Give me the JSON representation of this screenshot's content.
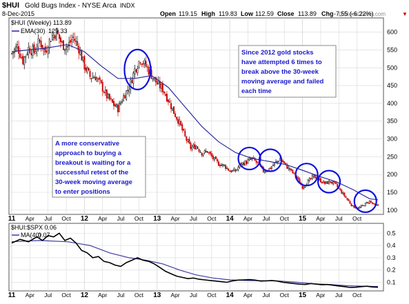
{
  "header": {
    "symbol": "$HUI",
    "name": "Gold Bugs Index - NYSE Arca",
    "exchange": "INDX",
    "date": "8-Dec-2015",
    "open_label": "Open",
    "open": "119.15",
    "high_label": "High",
    "high": "119.83",
    "low_label": "Low",
    "low": "112.59",
    "close_label": "Close",
    "close": "113.89",
    "chg_label": "Chg",
    "chg": "-7.55 (-6.22%)",
    "chg_arrow": "▼",
    "watermark": "@StockCharts.com"
  },
  "colors": {
    "up": "#000000",
    "down": "#cc0000",
    "ema": "#2a2a9a",
    "circle": "#1111dd",
    "annotation_text": "#1a1acc",
    "ratio": "#000000",
    "ma": "#3b3b9f",
    "grid": "#d8d8d8"
  },
  "chart_data": [
    {
      "type": "candlestick",
      "title": "$HUI (Weekly) 113.89",
      "series": [
        {
          "name": "$HUI (Weekly)",
          "value_label": "113.89",
          "close": [
            [
              0,
              540
            ],
            [
              4,
              560
            ],
            [
              8,
              520
            ],
            [
              12,
              555
            ],
            [
              16,
              545
            ],
            [
              20,
              575
            ],
            [
              24,
              545
            ],
            [
              28,
              585
            ],
            [
              32,
              600
            ],
            [
              36,
              565
            ],
            [
              40,
              560
            ],
            [
              44,
              585
            ],
            [
              48,
              555
            ],
            [
              52,
              505
            ],
            [
              56,
              475
            ],
            [
              60,
              475
            ],
            [
              64,
              450
            ],
            [
              68,
              420
            ],
            [
              72,
              400
            ],
            [
              76,
              385
            ],
            [
              80,
              420
            ],
            [
              84,
              445
            ],
            [
              88,
              495
            ],
            [
              92,
              525
            ],
            [
              96,
              505
            ],
            [
              100,
              480
            ],
            [
              104,
              455
            ],
            [
              108,
              440
            ],
            [
              112,
              410
            ],
            [
              116,
              375
            ],
            [
              120,
              345
            ],
            [
              124,
              305
            ],
            [
              128,
              275
            ],
            [
              132,
              280
            ],
            [
              136,
              260
            ],
            [
              140,
              265
            ],
            [
              144,
              245
            ],
            [
              148,
              230
            ],
            [
              152,
              225
            ],
            [
              156,
              210
            ],
            [
              160,
              210
            ],
            [
              164,
              230
            ],
            [
              168,
              235
            ],
            [
              172,
              245
            ],
            [
              176,
              230
            ],
            [
              180,
              210
            ],
            [
              184,
              215
            ],
            [
              188,
              230
            ],
            [
              192,
              245
            ],
            [
              196,
              225
            ],
            [
              200,
              210
            ],
            [
              204,
              190
            ],
            [
              208,
              165
            ],
            [
              212,
              180
            ],
            [
              216,
              195
            ],
            [
              220,
              185
            ],
            [
              224,
              175
            ],
            [
              228,
              180
            ],
            [
              232,
              170
            ],
            [
              236,
              150
            ],
            [
              240,
              130
            ],
            [
              244,
              110
            ],
            [
              248,
              105
            ],
            [
              252,
              115
            ],
            [
              256,
              125
            ],
            [
              260,
              112
            ],
            [
              262,
              114
            ]
          ]
        },
        {
          "name": "EMA(30)",
          "value_label": "129.33",
          "values": [
            [
              0,
              545
            ],
            [
              24,
              555
            ],
            [
              40,
              565
            ],
            [
              52,
              545
            ],
            [
              64,
              505
            ],
            [
              76,
              470
            ],
            [
              88,
              470
            ],
            [
              100,
              478
            ],
            [
              112,
              445
            ],
            [
              124,
              390
            ],
            [
              136,
              335
            ],
            [
              148,
              292
            ],
            [
              160,
              262
            ],
            [
              172,
              245
            ],
            [
              184,
              237
            ],
            [
              196,
              228
            ],
            [
              208,
              212
            ],
            [
              220,
              195
            ],
            [
              232,
              180
            ],
            [
              244,
              158
            ],
            [
              256,
              132
            ],
            [
              262,
              129
            ]
          ]
        }
      ],
      "yticks": [
        100,
        150,
        200,
        250,
        300,
        350,
        400,
        450,
        500,
        550,
        600
      ],
      "ylim": [
        88,
        640
      ],
      "xlabels": [
        {
          "text": "11",
          "week": 0,
          "year": true
        },
        {
          "text": "Apr",
          "week": 13
        },
        {
          "text": "Jul",
          "week": 26
        },
        {
          "text": "Oct",
          "week": 39
        },
        {
          "text": "12",
          "week": 52,
          "year": true
        },
        {
          "text": "Apr",
          "week": 65
        },
        {
          "text": "Jul",
          "week": 78
        },
        {
          "text": "Oct",
          "week": 91
        },
        {
          "text": "13",
          "week": 104,
          "year": true
        },
        {
          "text": "Apr",
          "week": 117
        },
        {
          "text": "Jul",
          "week": 130
        },
        {
          "text": "Oct",
          "week": 143
        },
        {
          "text": "14",
          "week": 156,
          "year": true
        },
        {
          "text": "Apr",
          "week": 169
        },
        {
          "text": "Jul",
          "week": 182
        },
        {
          "text": "Oct",
          "week": 195
        },
        {
          "text": "15",
          "week": 208,
          "year": true
        },
        {
          "text": "Apr",
          "week": 221
        },
        {
          "text": "Jul",
          "week": 234
        },
        {
          "text": "Oct",
          "week": 247
        }
      ],
      "circles": [
        {
          "week": 90,
          "value": 495
        },
        {
          "week": 170,
          "value": 245
        },
        {
          "week": 185,
          "value": 240
        },
        {
          "week": 211,
          "value": 200
        },
        {
          "week": 227,
          "value": 180
        },
        {
          "week": 253,
          "value": 125
        }
      ],
      "annotations": [
        {
          "lines": [
            "Since 2012 gold stocks",
            "have attempted 6 times to",
            "break above the 30-week",
            "moving average and failed",
            "each time"
          ]
        },
        {
          "lines": [
            "A more conservative",
            "approach to buying a",
            "breakout is waiting for a",
            "successful retest of the",
            "30-week moving average",
            "to enter positions"
          ]
        }
      ]
    },
    {
      "type": "line",
      "title": "$HUI:$SPX 0.06",
      "series": [
        {
          "name": "$HUI:$SPX",
          "value_label": "0.06",
          "values": [
            [
              0,
              0.42
            ],
            [
              6,
              0.45
            ],
            [
              12,
              0.43
            ],
            [
              18,
              0.47
            ],
            [
              22,
              0.44
            ],
            [
              26,
              0.48
            ],
            [
              30,
              0.47
            ],
            [
              34,
              0.5
            ],
            [
              38,
              0.44
            ],
            [
              42,
              0.46
            ],
            [
              46,
              0.42
            ],
            [
              50,
              0.36
            ],
            [
              54,
              0.34
            ],
            [
              58,
              0.3
            ],
            [
              62,
              0.31
            ],
            [
              66,
              0.27
            ],
            [
              70,
              0.26
            ],
            [
              74,
              0.24
            ],
            [
              78,
              0.23
            ],
            [
              82,
              0.26
            ],
            [
              86,
              0.28
            ],
            [
              90,
              0.3
            ],
            [
              94,
              0.28
            ],
            [
              98,
              0.27
            ],
            [
              102,
              0.25
            ],
            [
              106,
              0.22
            ],
            [
              110,
              0.19
            ],
            [
              114,
              0.17
            ],
            [
              118,
              0.15
            ],
            [
              122,
              0.14
            ],
            [
              126,
              0.13
            ],
            [
              130,
              0.135
            ],
            [
              134,
              0.125
            ],
            [
              138,
              0.12
            ],
            [
              142,
              0.115
            ],
            [
              146,
              0.11
            ],
            [
              150,
              0.105
            ],
            [
              154,
              0.1
            ],
            [
              158,
              0.112
            ],
            [
              162,
              0.118
            ],
            [
              166,
              0.12
            ],
            [
              170,
              0.122
            ],
            [
              174,
              0.118
            ],
            [
              178,
              0.11
            ],
            [
              182,
              0.112
            ],
            [
              186,
              0.115
            ],
            [
              190,
              0.11
            ],
            [
              194,
              0.1
            ],
            [
              198,
              0.095
            ],
            [
              202,
              0.09
            ],
            [
              206,
              0.085
            ],
            [
              210,
              0.082
            ],
            [
              214,
              0.09
            ],
            [
              218,
              0.085
            ],
            [
              222,
              0.08
            ],
            [
              226,
              0.082
            ],
            [
              230,
              0.076
            ],
            [
              234,
              0.07
            ],
            [
              238,
              0.065
            ],
            [
              242,
              0.058
            ],
            [
              246,
              0.06
            ],
            [
              250,
              0.065
            ],
            [
              254,
              0.068
            ],
            [
              258,
              0.062
            ],
            [
              262,
              0.06
            ]
          ]
        },
        {
          "name": "MA(40)",
          "value_label": "0.07",
          "values": [
            [
              0,
              0.43
            ],
            [
              20,
              0.44
            ],
            [
              40,
              0.43
            ],
            [
              56,
              0.4
            ],
            [
              70,
              0.34
            ],
            [
              84,
              0.3
            ],
            [
              96,
              0.28
            ],
            [
              108,
              0.25
            ],
            [
              120,
              0.2
            ],
            [
              132,
              0.16
            ],
            [
              144,
              0.135
            ],
            [
              156,
              0.12
            ],
            [
              168,
              0.115
            ],
            [
              180,
              0.113
            ],
            [
              192,
              0.11
            ],
            [
              204,
              0.1
            ],
            [
              216,
              0.088
            ],
            [
              228,
              0.082
            ],
            [
              240,
              0.072
            ],
            [
              252,
              0.068
            ],
            [
              262,
              0.066
            ]
          ]
        }
      ],
      "yticks": [
        "0.1",
        "0.2",
        "0.3",
        "0.4",
        "0.5"
      ],
      "ylim": [
        0.03,
        0.58
      ]
    }
  ]
}
